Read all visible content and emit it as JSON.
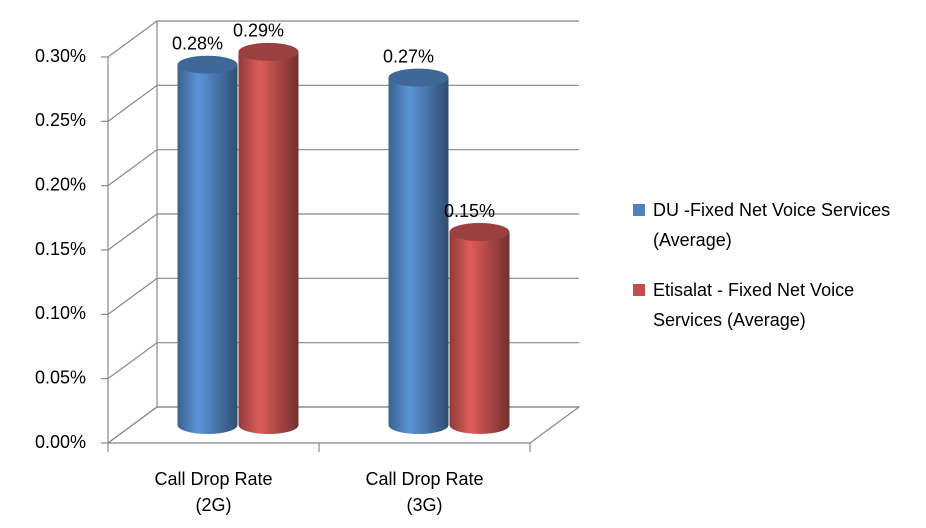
{
  "chart_data": {
    "type": "bar3d",
    "categories": [
      "Call Drop Rate (2G)",
      "Call Drop Rate (3G)"
    ],
    "series": [
      {
        "name": "DU -Fixed Net Voice Services (Average)",
        "color": "#4f81bd",
        "values": [
          0.28,
          0.27
        ],
        "value_labels": [
          "0.28%",
          "0.27%"
        ]
      },
      {
        "name": "Etisalat - Fixed Net Voice Services (Average)",
        "color": "#c0504d",
        "values": [
          0.29,
          0.15
        ],
        "value_labels": [
          "0.29%",
          "0.15%"
        ]
      }
    ],
    "ylim": [
      0,
      0.3
    ],
    "yticks": [
      {
        "value": 0,
        "label": "0.00%"
      },
      {
        "value": 0.05,
        "label": "0.05%"
      },
      {
        "value": 0.1,
        "label": "0.10%"
      },
      {
        "value": 0.15,
        "label": "0.15%"
      },
      {
        "value": 0.2,
        "label": "0.20%"
      },
      {
        "value": 0.25,
        "label": "0.25%"
      },
      {
        "value": 0.3,
        "label": "0.30%"
      }
    ],
    "grid": true,
    "legend": "right"
  }
}
